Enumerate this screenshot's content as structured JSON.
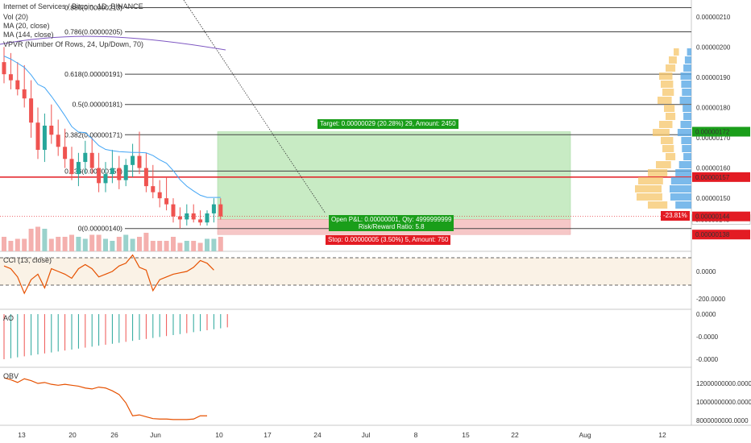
{
  "chart_data": [
    {
      "type": "candlestick",
      "title": "Internet of Services / Bitcoin, 1D, BINANCE",
      "symbol_legend": "Internet of Services / Bitcoin, 1D, BINANCE",
      "indicator_legends": [
        "Vol (20)",
        "MA (20, close)",
        "MA (144, close)",
        "VPVR (Number Of Rows, 24, Up/Down, 70)"
      ],
      "y_ticks": [
        "0.00000210",
        "0.00000200",
        "0.00000190",
        "0.00000180",
        "0.00000170",
        "0.00000160",
        "0.00000150"
      ],
      "ylim": [
        1.33e-06,
        2.15e-06
      ],
      "x_ticks": [
        "13",
        "20",
        "26",
        "Jun",
        "10",
        "17",
        "24",
        "Jul",
        "8",
        "15",
        "22",
        "Aug",
        "12"
      ],
      "fib_levels": [
        {
          "label": "0.886(0.00000213)",
          "value": 2.13e-06
        },
        {
          "label": "0.786(0.00000205)",
          "value": 2.05e-06
        },
        {
          "label": "0.618(0.00000191)",
          "value": 1.91e-06
        },
        {
          "label": "0.5(0.00000181)",
          "value": 1.81e-06
        },
        {
          "label": "0.382(0.00000171)",
          "value": 1.71e-06
        },
        {
          "label": "0.236(0.00000159)",
          "value": 1.59e-06
        },
        {
          "label": "0(0.00000140)",
          "value": 1.4e-06
        }
      ],
      "candles": [
        {
          "o": 195,
          "h": 200,
          "l": 188,
          "c": 191
        },
        {
          "o": 191,
          "h": 198,
          "l": 186,
          "c": 189
        },
        {
          "o": 189,
          "h": 195,
          "l": 184,
          "c": 186
        },
        {
          "o": 186,
          "h": 194,
          "l": 180,
          "c": 183
        },
        {
          "o": 183,
          "h": 189,
          "l": 170,
          "c": 175
        },
        {
          "o": 175,
          "h": 180,
          "l": 163,
          "c": 166
        },
        {
          "o": 166,
          "h": 178,
          "l": 162,
          "c": 174
        },
        {
          "o": 174,
          "h": 181,
          "l": 168,
          "c": 171
        },
        {
          "o": 171,
          "h": 176,
          "l": 164,
          "c": 167
        },
        {
          "o": 167,
          "h": 173,
          "l": 160,
          "c": 163
        },
        {
          "o": 163,
          "h": 167,
          "l": 156,
          "c": 158
        },
        {
          "o": 158,
          "h": 165,
          "l": 154,
          "c": 162
        },
        {
          "o": 162,
          "h": 169,
          "l": 158,
          "c": 165
        },
        {
          "o": 165,
          "h": 170,
          "l": 158,
          "c": 160
        },
        {
          "o": 160,
          "h": 165,
          "l": 152,
          "c": 155
        },
        {
          "o": 155,
          "h": 162,
          "l": 152,
          "c": 158
        },
        {
          "o": 158,
          "h": 166,
          "l": 155,
          "c": 160
        },
        {
          "o": 160,
          "h": 164,
          "l": 153,
          "c": 156
        },
        {
          "o": 156,
          "h": 163,
          "l": 154,
          "c": 161
        },
        {
          "o": 161,
          "h": 168,
          "l": 157,
          "c": 164
        },
        {
          "o": 164,
          "h": 172,
          "l": 158,
          "c": 160
        },
        {
          "o": 160,
          "h": 165,
          "l": 152,
          "c": 154
        },
        {
          "o": 154,
          "h": 161,
          "l": 150,
          "c": 152
        },
        {
          "o": 152,
          "h": 156,
          "l": 147,
          "c": 150
        },
        {
          "o": 150,
          "h": 157,
          "l": 146,
          "c": 148
        },
        {
          "o": 148,
          "h": 150,
          "l": 142,
          "c": 144
        },
        {
          "o": 144,
          "h": 147,
          "l": 140,
          "c": 143
        },
        {
          "o": 143,
          "h": 148,
          "l": 141,
          "c": 145
        },
        {
          "o": 145,
          "h": 148,
          "l": 142,
          "c": 143
        },
        {
          "o": 143,
          "h": 146,
          "l": 141,
          "c": 142
        },
        {
          "o": 142,
          "h": 146,
          "l": 141,
          "c": 145
        },
        {
          "o": 145,
          "h": 150,
          "l": 142,
          "c": 148
        },
        {
          "o": 148,
          "h": 150,
          "l": 143,
          "c": 144
        }
      ],
      "current_price_badge": "0.00000144",
      "change_badge": "-23.81%",
      "price_badges": [
        {
          "label": "0.00000172",
          "color": "#1a9e1a",
          "value": 1.72e-06
        },
        {
          "label": "0.00000157",
          "color": "#e31b23",
          "value": 1.57e-06
        },
        {
          "label": "0.00000143",
          "color": "#ffffff",
          "value": 1.43e-06
        },
        {
          "label": "0.00000138",
          "color": "#e31b23",
          "value": 1.38e-06
        }
      ],
      "position": {
        "target_label": "Target: 0.00000029 (20.28%) 29, Amount: 2450",
        "open_label_1": "Open P&L: 0.00000001, Qty: 4999999999",
        "open_label_2": "Risk/Reward Ratio: 5.8",
        "stop_label": "Stop: 0.00000005 (3.50%) 5, Amount: 750",
        "entry": 1.43e-06,
        "target": 1.72e-06,
        "stop": 1.38e-06
      }
    },
    {
      "type": "line",
      "title": "CCI (13, close)",
      "y_ticks": [
        "0.0000",
        "-200.0000"
      ],
      "values": [
        40,
        20,
        -40,
        -160,
        -60,
        -20,
        -120,
        20,
        0,
        -20,
        -50,
        20,
        50,
        20,
        -40,
        -20,
        0,
        40,
        60,
        120,
        30,
        10,
        -140,
        -60,
        -40,
        -20,
        -10,
        0,
        30,
        80,
        60,
        10
      ]
    },
    {
      "type": "bar",
      "title": "AO",
      "y_ticks": [
        "0.0000",
        "-0.0000",
        "-0.0000"
      ]
    },
    {
      "type": "line",
      "title": "OBV",
      "y_ticks": [
        "12000000000.0000",
        "10000000000.0000",
        "8000000000.0000"
      ],
      "values": [
        12.6,
        12.4,
        12.1,
        12.5,
        12.3,
        12.0,
        12.1,
        11.9,
        11.8,
        11.9,
        11.8,
        11.7,
        11.5,
        11.4,
        11.6,
        11.5,
        11.2,
        10.8,
        9.9,
        8.5,
        8.6,
        8.4,
        8.2,
        8.15,
        8.15,
        8.1,
        8.1,
        8.1,
        8.15,
        8.5,
        8.5
      ]
    }
  ],
  "colors": {
    "up": "#26a69a",
    "down": "#ef5350",
    "ma20": "#42a5f5",
    "ma144": "#7e57c2",
    "cci": "#e65100",
    "obv": "#e65100",
    "target_zone": "#c8ebc4",
    "stop_zone": "#f6c7c7"
  }
}
